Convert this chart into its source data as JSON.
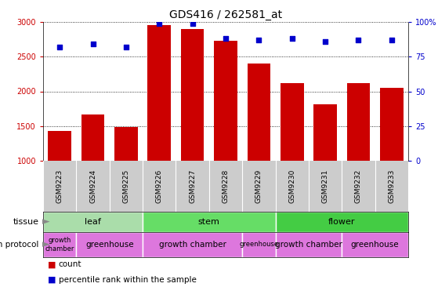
{
  "title": "GDS416 / 262581_at",
  "samples": [
    "GSM9223",
    "GSM9224",
    "GSM9225",
    "GSM9226",
    "GSM9227",
    "GSM9228",
    "GSM9229",
    "GSM9230",
    "GSM9231",
    "GSM9232",
    "GSM9233"
  ],
  "counts": [
    1430,
    1670,
    1490,
    2950,
    2900,
    2730,
    2400,
    2120,
    1810,
    2120,
    2050
  ],
  "percentiles": [
    82,
    84,
    82,
    99,
    99,
    88,
    87,
    88,
    86,
    87,
    87
  ],
  "ylim_left": [
    1000,
    3000
  ],
  "ylim_right": [
    0,
    100
  ],
  "yticks_left": [
    1000,
    1500,
    2000,
    2500,
    3000
  ],
  "yticks_right": [
    0,
    25,
    50,
    75,
    100
  ],
  "bar_color": "#cc0000",
  "dot_color": "#0000cc",
  "tissue_groups": [
    {
      "label": "leaf",
      "start": 0,
      "end": 2,
      "color": "#aaddaa"
    },
    {
      "label": "stem",
      "start": 3,
      "end": 6,
      "color": "#66dd66"
    },
    {
      "label": "flower",
      "start": 7,
      "end": 10,
      "color": "#44cc44"
    }
  ],
  "protocol_groups": [
    {
      "label": "growth\nchamber",
      "start": 0,
      "end": 0,
      "color": "#dd77dd"
    },
    {
      "label": "greenhouse",
      "start": 1,
      "end": 2,
      "color": "#dd77dd"
    },
    {
      "label": "growth chamber",
      "start": 3,
      "end": 5,
      "color": "#dd77dd"
    },
    {
      "label": "greenhouse",
      "start": 6,
      "end": 6,
      "color": "#dd77dd"
    },
    {
      "label": "growth chamber",
      "start": 7,
      "end": 8,
      "color": "#dd77dd"
    },
    {
      "label": "greenhouse",
      "start": 9,
      "end": 10,
      "color": "#dd77dd"
    }
  ],
  "legend_count_color": "#cc0000",
  "legend_dot_color": "#0000cc",
  "tick_label_color_left": "#cc0000",
  "tick_label_color_right": "#0000cc",
  "bg_gray": "#cccccc",
  "bg_white": "#ffffff"
}
